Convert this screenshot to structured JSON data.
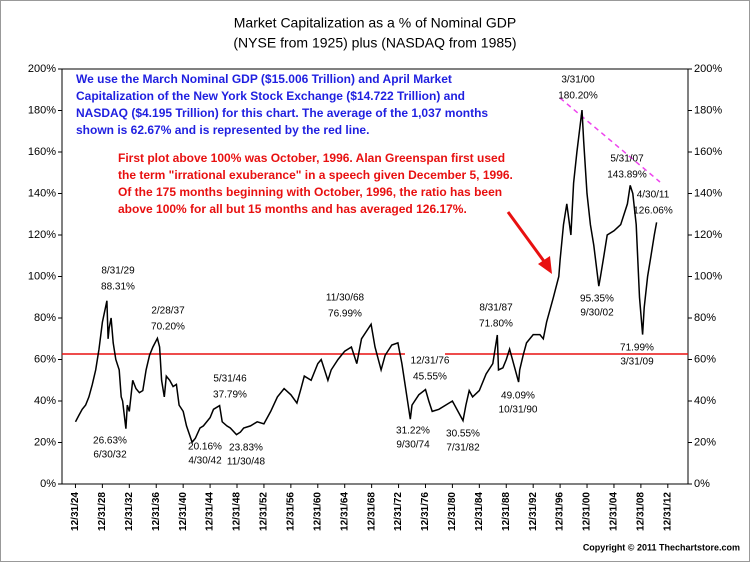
{
  "chart_data": {
    "type": "line",
    "title": "Market Capitalization as a % of Nominal GDP",
    "subtitle": "(NYSE from 1925) plus (NASDAQ from 1985)",
    "notes_blue": [
      "We use the March Nominal GDP ($15.006 Trillion) and April Market",
      "Capitalization of the New York Stock Exchange ($14.722 Trillion) and",
      "NASDAQ ($4.195 Trillion) for this chart.  The average of the 1,037 months",
      "shown is 62.67% and is represented by the red line."
    ],
    "notes_red": [
      "First plot above 100% was October, 1996.  Alan Greenspan first used",
      "the term \"irrational exuberance\" in a speech given December 5, 1996.",
      "Of the 175 months beginning with October, 1996, the ratio has been",
      "above 100% for all but 15 months and has averaged 126.17%."
    ],
    "copyright": "Copyright © 2011 Thechartstore.com",
    "reference_line": {
      "value": 62.67,
      "color": "#e81010"
    },
    "series": [
      {
        "color": "#000000",
        "x": [
          1925,
          1925.5,
          1926,
          1926.5,
          1927,
          1927.5,
          1928,
          1928.5,
          1929,
          1929.67,
          1929.85,
          1930,
          1930.3,
          1930.6,
          1931,
          1931.5,
          1931.8,
          1932,
          1932.5,
          1932.7,
          1933,
          1933.5,
          1934,
          1934.5,
          1935,
          1935.5,
          1936,
          1936.5,
          1937.17,
          1937.5,
          1937.8,
          1938.2,
          1938.5,
          1939,
          1939.5,
          1940,
          1940.4,
          1941,
          1941.5,
          1942.33,
          1942.8,
          1943.5,
          1944,
          1945,
          1945.5,
          1946.42,
          1946.8,
          1947.5,
          1948,
          1948.92,
          1949.5,
          1950,
          1951,
          1952,
          1953,
          1954,
          1955,
          1956,
          1957,
          1957.9,
          1958.5,
          1959,
          1960,
          1961,
          1961.5,
          1962.5,
          1963,
          1964,
          1965,
          1966,
          1966.8,
          1967.5,
          1968.92,
          1969.5,
          1970.4,
          1971,
          1972,
          1972.9,
          1973.5,
          1974.75,
          1975,
          1976,
          1977,
          1977.5,
          1978,
          1979,
          1980,
          1981,
          1982.58,
          1983,
          1983.5,
          1984,
          1985,
          1986,
          1987,
          1987.67,
          1987.85,
          1988.5,
          1989,
          1989.5,
          1990.83,
          1991,
          1991.5,
          1992,
          1993,
          1994,
          1994.5,
          1995,
          1996,
          1996.8,
          1997,
          1997.5,
          1998,
          1998.6,
          1999,
          1999.5,
          2000.25,
          2000.5,
          2001,
          2001.5,
          2002,
          2002.75,
          2003,
          2003.5,
          2004,
          2005,
          2006,
          2007,
          2007.42,
          2007.8,
          2008.3,
          2008.8,
          2009.25,
          2009.5,
          2010,
          2010.5,
          2011,
          2011.33
        ],
        "values": [
          30,
          33,
          36,
          38,
          42,
          48,
          55,
          65,
          78,
          88.31,
          70,
          75,
          80,
          68,
          60,
          55,
          42,
          40,
          26.63,
          38,
          35,
          50,
          46,
          44,
          45,
          55,
          62,
          66,
          70.2,
          66,
          50,
          42,
          52,
          50,
          47,
          48,
          38,
          35,
          28,
          20.16,
          22,
          27,
          28,
          32,
          36,
          37.79,
          30,
          28,
          27,
          23.83,
          25,
          27,
          28,
          30,
          29,
          35,
          42,
          46,
          43,
          39,
          46,
          52,
          50,
          58,
          60,
          50,
          55,
          60,
          64,
          66,
          58,
          70,
          76.99,
          66,
          55,
          62,
          67,
          68,
          58,
          31.22,
          38,
          43,
          45.55,
          40,
          35,
          36,
          38,
          40,
          30.55,
          38,
          45,
          42,
          45,
          53,
          58,
          71.8,
          55,
          56,
          60,
          65,
          49.09,
          55,
          62,
          68,
          72,
          72,
          70,
          78,
          90,
          100,
          108,
          125,
          135,
          120,
          145,
          160,
          180.2,
          165,
          140,
          125,
          115,
          95.35,
          100,
          110,
          120,
          122,
          125,
          135,
          143.89,
          140,
          125,
          90,
          71.99,
          85,
          100,
          110,
          120,
          126.06
        ]
      }
    ],
    "annotations": [
      {
        "date": "8/31/29",
        "label": "88.31%"
      },
      {
        "date": "2/28/37",
        "label": "70.20%"
      },
      {
        "date": "6/30/32",
        "label": "26.63%"
      },
      {
        "date": "5/31/46",
        "label": "37.79%"
      },
      {
        "date": "4/30/42",
        "label": "20.16%"
      },
      {
        "date": "11/30/48",
        "label": "23.83%"
      },
      {
        "date": "11/30/68",
        "label": "76.99%"
      },
      {
        "date": "12/31/76",
        "label": "45.55%"
      },
      {
        "date": "9/30/74",
        "label": "31.22%"
      },
      {
        "date": "7/31/82",
        "label": "30.55%"
      },
      {
        "date": "8/31/87",
        "label": "71.80%"
      },
      {
        "date": "10/31/90",
        "label": "49.09%"
      },
      {
        "date": "3/31/00",
        "label": "180.20%"
      },
      {
        "date": "5/31/07",
        "label": "143.89%"
      },
      {
        "date": "9/30/02",
        "label": "95.35%"
      },
      {
        "date": "4/30/11",
        "label": "126.06%"
      },
      {
        "date": "3/31/09",
        "label": "71.99%"
      }
    ],
    "xlim": [
      1923,
      2016
    ],
    "xticks": [
      {
        "value": 1925,
        "label": "12/31/24"
      },
      {
        "value": 1929,
        "label": "12/31/28"
      },
      {
        "value": 1933,
        "label": "12/31/32"
      },
      {
        "value": 1937,
        "label": "12/31/36"
      },
      {
        "value": 1941,
        "label": "12/31/40"
      },
      {
        "value": 1945,
        "label": "12/31/44"
      },
      {
        "value": 1949,
        "label": "12/31/48"
      },
      {
        "value": 1953,
        "label": "12/31/52"
      },
      {
        "value": 1957,
        "label": "12/31/56"
      },
      {
        "value": 1961,
        "label": "12/31/60"
      },
      {
        "value": 1965,
        "label": "12/31/64"
      },
      {
        "value": 1969,
        "label": "12/31/68"
      },
      {
        "value": 1973,
        "label": "12/31/72"
      },
      {
        "value": 1977,
        "label": "12/31/76"
      },
      {
        "value": 1981,
        "label": "12/31/80"
      },
      {
        "value": 1985,
        "label": "12/31/84"
      },
      {
        "value": 1989,
        "label": "12/31/88"
      },
      {
        "value": 1993,
        "label": "12/31/92"
      },
      {
        "value": 1997,
        "label": "12/31/96"
      },
      {
        "value": 2001,
        "label": "12/31/00"
      },
      {
        "value": 2005,
        "label": "12/31/04"
      },
      {
        "value": 2009,
        "label": "12/31/08"
      },
      {
        "value": 2013,
        "label": "12/31/12"
      }
    ],
    "ylim": [
      0,
      200
    ],
    "yticks": [
      {
        "value": 0,
        "label": "0%"
      },
      {
        "value": 20,
        "label": "20%"
      },
      {
        "value": 40,
        "label": "40%"
      },
      {
        "value": 60,
        "label": "60%"
      },
      {
        "value": 80,
        "label": "80%"
      },
      {
        "value": 100,
        "label": "100%"
      },
      {
        "value": 120,
        "label": "120%"
      },
      {
        "value": 140,
        "label": "140%"
      },
      {
        "value": 160,
        "label": "160%"
      },
      {
        "value": 180,
        "label": "180%"
      },
      {
        "value": 200,
        "label": "200%"
      }
    ]
  }
}
